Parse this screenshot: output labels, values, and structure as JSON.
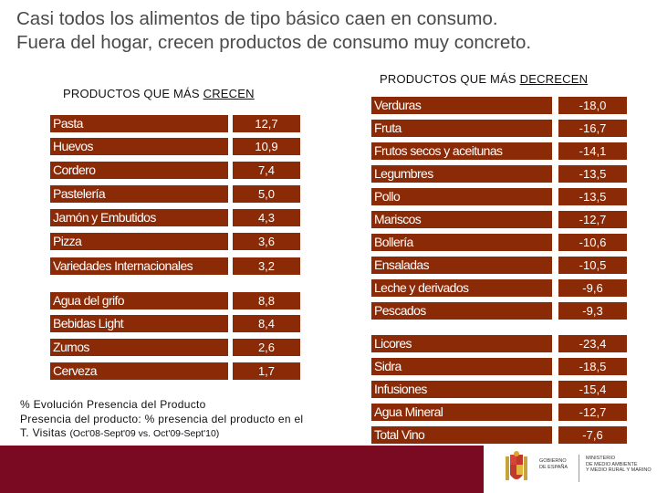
{
  "title": {
    "line1": "Casi todos los alimentos de tipo básico caen en consumo.",
    "line2": "Fuera del hogar, crecen productos de consumo muy concreto."
  },
  "crecen": {
    "heading_prefix": "PRODUCTOS QUE MÁS ",
    "heading_underlined": "CRECEN",
    "rows": [
      {
        "label": "Pasta",
        "value": "12,7"
      },
      {
        "label": "Huevos",
        "value": "10,9"
      },
      {
        "label": "Cordero",
        "value": "7,4"
      },
      {
        "label": "Pastelería",
        "value": "5,0"
      },
      {
        "label": "Jamón y Embutidos",
        "value": "4,3"
      },
      {
        "label": "Pizza",
        "value": "3,6"
      },
      {
        "label": "Variedades Internacionales",
        "value": "3,2"
      },
      {
        "label": "Agua del grifo",
        "value": "8,8"
      },
      {
        "label": "Bebidas Light",
        "value": "8,4"
      },
      {
        "label": "Zumos",
        "value": "2,6"
      },
      {
        "label": "Cerveza",
        "value": "1,7"
      }
    ]
  },
  "decrecen": {
    "heading_prefix": "PRODUCTOS QUE MÁS ",
    "heading_underlined": "DECRECEN",
    "rows": [
      {
        "label": "Verduras",
        "value": "-18,0"
      },
      {
        "label": "Fruta",
        "value": "-16,7"
      },
      {
        "label": "Frutos secos y aceitunas",
        "value": "-14,1"
      },
      {
        "label": "Legumbres",
        "value": "-13,5"
      },
      {
        "label": "Pollo",
        "value": "-13,5"
      },
      {
        "label": "Mariscos",
        "value": "-12,7"
      },
      {
        "label": "Bollería",
        "value": "-10,6"
      },
      {
        "label": "Ensaladas",
        "value": "-10,5"
      },
      {
        "label": "Leche y derivados",
        "value": "-9,6"
      },
      {
        "label": "Pescados",
        "value": "-9,3"
      },
      {
        "label": "Licores",
        "value": "-23,4"
      },
      {
        "label": "Sidra",
        "value": "-18,5"
      },
      {
        "label": "Infusiones",
        "value": "-15,4"
      },
      {
        "label": "Agua Mineral",
        "value": "-12,7"
      },
      {
        "label": "Total Vino",
        "value": "-7,6"
      }
    ]
  },
  "legend": {
    "line1": "% Evolución Presencia del Producto",
    "line2": "Presencia del producto: % presencia del producto en el",
    "line3_main": "T. Visitas",
    "line3_small": "(Oct'08-Sept'09 vs. Oct'09-Sept'10)"
  },
  "footer": {
    "gov_line1": "GOBIERNO",
    "gov_line2": "DE ESPAÑA",
    "min_line1": "MINISTERIO",
    "min_line2": "DE MEDIO AMBIENTE",
    "min_line3": "Y MEDIO RURAL Y MARINO"
  },
  "colors": {
    "bar": "#8b2a06",
    "footer": "#7a0a21",
    "title": "#4a4a4a"
  }
}
